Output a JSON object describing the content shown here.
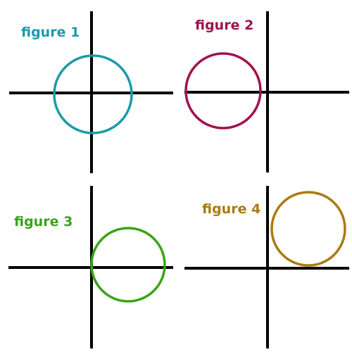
{
  "figures": [
    {
      "label": "figure 1",
      "color": "#1a9ba8",
      "center_quadrant": "origin"
    },
    {
      "label": "figure 2",
      "color": "#a0114f",
      "center_quadrant": "left-of-origin"
    },
    {
      "label": "figure 3",
      "color": "#3aa317",
      "center_quadrant": "lower-right"
    },
    {
      "label": "figure 4",
      "color": "#a97b10",
      "center_quadrant": "upper-right"
    }
  ],
  "axis_color": "#000000"
}
